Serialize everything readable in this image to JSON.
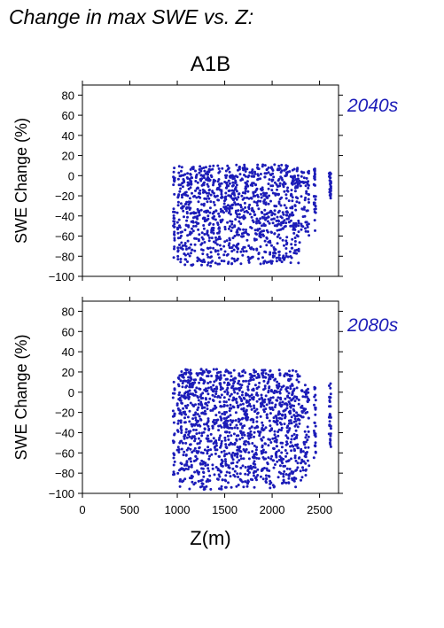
{
  "page_title": "Change in max SWE vs. Z:",
  "colors": {
    "points": "#1c1cb8",
    "panel_label": "#1c1cb8",
    "axis": "#000000"
  },
  "chart_data": [
    {
      "type": "scatter",
      "title": "A1B",
      "panel_label": "2040s",
      "ylabel": "SWE Change (%)",
      "xlabel": "",
      "xlim": [
        0,
        2700
      ],
      "ylim": [
        -100,
        90
      ],
      "xticks": [
        0,
        500,
        1000,
        1500,
        2000,
        2500
      ],
      "yticks": [
        -100,
        -80,
        -60,
        -40,
        -20,
        0,
        20,
        40,
        60,
        80
      ],
      "show_x_tick_labels": false,
      "grid": false,
      "series": [
        {
          "color": "#1c1cb8",
          "bands": [
            {
              "x": [
                955,
                975
              ],
              "y": [
                -85,
                8
              ]
            },
            {
              "x": [
                1000,
                1480
              ],
              "y": [
                -90,
                10
              ]
            },
            {
              "x": [
                1490,
                2290
              ],
              "y": [
                -88,
                11
              ]
            },
            {
              "x": [
                2300,
                2390
              ],
              "y": [
                -60,
                5
              ]
            },
            {
              "x": [
                2440,
                2460
              ],
              "y": [
                -55,
                7
              ]
            },
            {
              "x": [
                2600,
                2620
              ],
              "y": [
                -25,
                6
              ]
            }
          ]
        }
      ]
    },
    {
      "type": "scatter",
      "title": "",
      "panel_label": "2080s",
      "ylabel": "SWE Change (%)",
      "xlabel": "Z(m)",
      "xlim": [
        0,
        2700
      ],
      "ylim": [
        -100,
        90
      ],
      "xticks": [
        0,
        500,
        1000,
        1500,
        2000,
        2500
      ],
      "yticks": [
        -100,
        -80,
        -60,
        -40,
        -20,
        0,
        20,
        40,
        60,
        80
      ],
      "xtick_labels": [
        "0",
        "500",
        "1000",
        "1500",
        "2000",
        "2500"
      ],
      "show_x_tick_labels": true,
      "grid": false,
      "series": [
        {
          "color": "#1c1cb8",
          "bands": [
            {
              "x": [
                955,
                975
              ],
              "y": [
                -95,
                12
              ]
            },
            {
              "x": [
                1000,
                1480
              ],
              "y": [
                -97,
                23
              ]
            },
            {
              "x": [
                1490,
                2290
              ],
              "y": [
                -95,
                22
              ]
            },
            {
              "x": [
                2300,
                2390
              ],
              "y": [
                -88,
                8
              ]
            },
            {
              "x": [
                2440,
                2460
              ],
              "y": [
                -65,
                5
              ]
            },
            {
              "x": [
                2600,
                2620
              ],
              "y": [
                -62,
                10
              ]
            }
          ]
        }
      ]
    }
  ]
}
